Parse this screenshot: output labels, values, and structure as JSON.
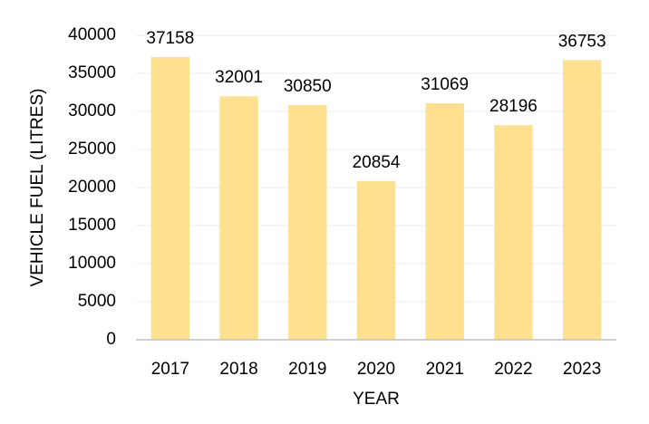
{
  "chart_data": {
    "type": "bar",
    "x_label": "YEAR",
    "y_label": "VEHICLE FUEL (LITRES)",
    "categories": [
      "2017",
      "2018",
      "2019",
      "2020",
      "2021",
      "2022",
      "2023"
    ],
    "values": [
      37158,
      32001,
      30850,
      20854,
      31069,
      28196,
      36753
    ],
    "color": "#ffe08f",
    "ylim": [
      0,
      40000
    ],
    "yticks": [
      0,
      5000,
      10000,
      15000,
      20000,
      25000,
      30000,
      35000,
      40000
    ],
    "grid": true
  }
}
